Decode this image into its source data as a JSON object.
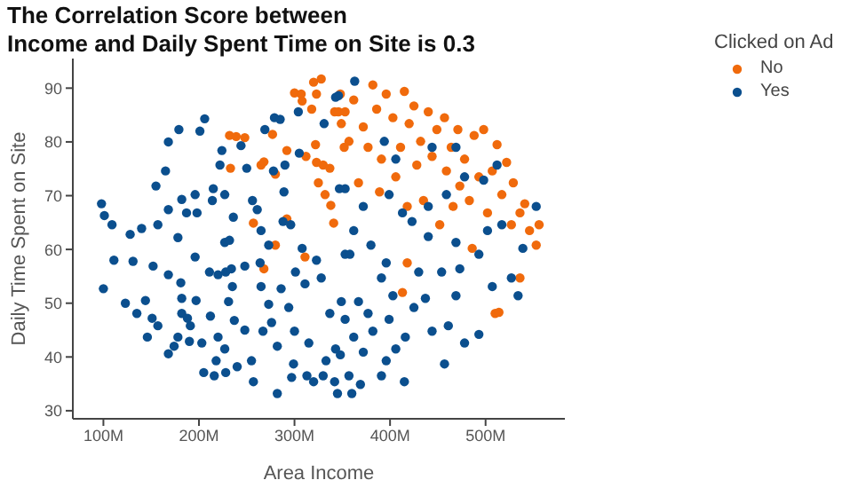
{
  "chart_data": {
    "type": "scatter",
    "title": "The Correlation Score between\nIncome and Daily Spent Time on Site is 0.3",
    "xlabel": "Area Income",
    "ylabel": "Daily Time Spent on Site",
    "legend_title": "Clicked on Ad",
    "legend": "top right",
    "marker": "circle",
    "xlim": [
      68000000,
      583000000
    ],
    "xticks": [
      {
        "value": 100000000,
        "label": "100M"
      },
      {
        "value": 200000000,
        "label": "200M"
      },
      {
        "value": 300000000,
        "label": "300M"
      },
      {
        "value": 400000000,
        "label": "400M"
      },
      {
        "value": 500000000,
        "label": "500M"
      }
    ],
    "ylim": [
      28.5,
      95.5
    ],
    "yticks": [
      30,
      40,
      50,
      60,
      70,
      80,
      90
    ],
    "series": [
      {
        "name": "No",
        "color": "#f06a0c",
        "x": [
          232000000,
          239000000,
          248000000,
          233000000,
          265000000,
          268000000,
          277000000,
          280000000,
          292000000,
          292000000,
          257000000,
          268000000,
          280000000,
          300000000,
          307000000,
          308000000,
          311000000,
          312000000,
          318000000,
          320000000,
          323000000,
          328000000,
          322000000,
          323000000,
          325000000,
          330000000,
          332000000,
          337000000,
          338000000,
          341000000,
          342000000,
          346000000,
          349000000,
          352000000,
          348000000,
          353000000,
          357000000,
          362000000,
          367000000,
          372000000,
          377000000,
          382000000,
          386000000,
          389000000,
          391000000,
          396000000,
          403000000,
          406000000,
          411000000,
          415000000,
          418000000,
          420000000,
          425000000,
          428000000,
          432000000,
          435000000,
          440000000,
          444000000,
          449000000,
          452000000,
          457000000,
          459000000,
          464000000,
          466000000,
          471000000,
          473000000,
          478000000,
          483000000,
          486000000,
          488000000,
          493000000,
          498000000,
          502000000,
          507000000,
          512000000,
          517000000,
          522000000,
          527000000,
          529000000,
          536000000,
          541000000,
          546000000,
          553000000,
          556000000,
          510000000,
          514000000,
          413000000,
          418000000,
          536000000
        ],
        "values": [
          81.2,
          81,
          80.8,
          75.1,
          75.7,
          76.3,
          81.4,
          74,
          78.4,
          65.7,
          64.9,
          56.4,
          60.8,
          89.1,
          88.9,
          87.6,
          58.6,
          77.3,
          86.1,
          91.1,
          88.9,
          91.7,
          79.5,
          76.2,
          72.4,
          75.7,
          70.2,
          75.1,
          68.2,
          64.9,
          85.6,
          85.6,
          83.4,
          79,
          88.9,
          85.6,
          80.1,
          87.8,
          72.4,
          82.8,
          79,
          90.6,
          86.1,
          70.7,
          76.8,
          88.9,
          84.5,
          73.5,
          79,
          89.4,
          68,
          83.4,
          86.7,
          75.7,
          80.1,
          69.1,
          85.6,
          77.3,
          82.3,
          64.6,
          84.5,
          74.6,
          79,
          68,
          82.3,
          71.8,
          76.8,
          69.1,
          60.2,
          81.2,
          73.5,
          82.3,
          66.8,
          74.6,
          79.5,
          70.2,
          76.2,
          64.6,
          72.4,
          66.8,
          68.5,
          63.5,
          60.8,
          64.6,
          48.1,
          48.3,
          52,
          57.5,
          54.7
        ]
      },
      {
        "name": "Yes",
        "color": "#0b4f8e",
        "x": [
          98000000,
          101000000,
          109000000,
          100000000,
          111000000,
          128000000,
          140000000,
          131000000,
          123000000,
          135000000,
          144000000,
          146000000,
          152000000,
          151000000,
          157000000,
          155000000,
          157000000,
          165000000,
          168000000,
          168000000,
          168000000,
          168000000,
          174000000,
          178000000,
          179000000,
          178000000,
          181000000,
          182000000,
          182000000,
          182000000,
          187000000,
          188000000,
          191000000,
          190000000,
          196000000,
          196000000,
          197000000,
          198000000,
          201000000,
          203000000,
          205000000,
          206000000,
          211000000,
          212000000,
          215000000,
          214000000,
          220000000,
          220000000,
          218000000,
          216000000,
          222000000,
          224000000,
          227000000,
          227000000,
          228000000,
          231000000,
          227000000,
          228000000,
          232000000,
          234000000,
          235000000,
          237000000,
          236000000,
          240000000,
          244000000,
          250000000,
          248000000,
          248000000,
          255000000,
          257000000,
          256000000,
          261000000,
          265000000,
          264000000,
          265000000,
          267000000,
          269000000,
          273000000,
          273000000,
          276000000,
          278000000,
          279000000,
          282000000,
          282000000,
          285000000,
          286000000,
          288000000,
          289000000,
          290000000,
          294000000,
          296000000,
          299000000,
          297000000,
          300000000,
          301000000,
          304000000,
          305000000,
          308000000,
          311000000,
          313000000,
          315000000,
          320000000,
          323000000,
          328000000,
          330000000,
          331000000,
          333000000,
          337000000,
          342000000,
          343000000,
          345000000,
          346000000,
          347000000,
          349000000,
          353000000,
          363000000,
          343000000,
          394000000,
          406000000,
          444000000,
          469000000,
          512000000,
          498000000,
          478000000,
          399000000,
          413000000,
          440000000,
          459000000,
          353000000,
          362000000,
          372000000,
          423000000,
          440000000,
          469000000,
          502000000,
          517000000,
          539000000,
          553000000,
          358000000,
          380000000,
          396000000,
          391000000,
          430000000,
          454000000,
          473000000,
          493000000,
          527000000,
          534000000,
          507000000,
          403000000,
          437000000,
          469000000,
          367000000,
          377000000,
          353000000,
          362000000,
          382000000,
          399000000,
          425000000,
          444000000,
          461000000,
          478000000,
          493000000,
          457000000,
          416000000,
          396000000,
          372000000,
          348000000,
          357000000,
          369000000,
          360000000,
          391000000,
          415000000,
          406000000
        ],
        "values": [
          68.5,
          66.3,
          64.6,
          52.7,
          58,
          62.8,
          63.9,
          57.8,
          50,
          48.1,
          50.5,
          43.7,
          56.9,
          47.2,
          45.8,
          71.8,
          64.6,
          74.6,
          80,
          67.4,
          55.3,
          40.6,
          42,
          43.7,
          82.3,
          62.2,
          53.8,
          50.9,
          48.1,
          69.3,
          66.8,
          47.2,
          45.8,
          42.9,
          70.2,
          58.6,
          50.5,
          66.8,
          82,
          42.6,
          37.1,
          84.3,
          55.8,
          47.6,
          71.3,
          69.1,
          55.3,
          43.7,
          39.3,
          36.5,
          75.7,
          78.4,
          70.2,
          61.3,
          55.8,
          50.3,
          41.5,
          37.1,
          61.7,
          56.4,
          53.1,
          46.8,
          66,
          38.2,
          79.3,
          75.1,
          56.9,
          45,
          39.3,
          35.4,
          69.1,
          67.4,
          63.5,
          57.5,
          53.1,
          44.8,
          82.3,
          60.8,
          49.8,
          46.4,
          74.6,
          84.5,
          42,
          33.2,
          84.2,
          52.7,
          65.2,
          70.7,
          75.7,
          49.2,
          64.6,
          38.7,
          36.2,
          44.8,
          55.8,
          85.6,
          77.9,
          60.2,
          53.6,
          36.5,
          42.6,
          35.4,
          58,
          54.7,
          36.5,
          83.4,
          39.3,
          48.1,
          35.4,
          41.5,
          33.2,
          88.6,
          71.3,
          50.3,
          59.1,
          91.3,
          88.3,
          80.1,
          76.8,
          79,
          79,
          75.7,
          72.9,
          73.5,
          70.2,
          66.8,
          68,
          70.2,
          71.3,
          63.5,
          68,
          65.2,
          62.4,
          61.3,
          63.5,
          64.6,
          60.2,
          68,
          59.1,
          60.8,
          57.5,
          54.7,
          55.8,
          55.8,
          56.4,
          59.1,
          54.7,
          51.4,
          53.1,
          51.4,
          50.9,
          51.4,
          50.3,
          48.1,
          47,
          43.7,
          44.8,
          47,
          49.2,
          44.8,
          45.8,
          42.6,
          44.2,
          38.7,
          43.7,
          39.3,
          40.9,
          40.4,
          36.5,
          34.9,
          33.2,
          36.5,
          35.4,
          41.5
        ]
      }
    ]
  }
}
